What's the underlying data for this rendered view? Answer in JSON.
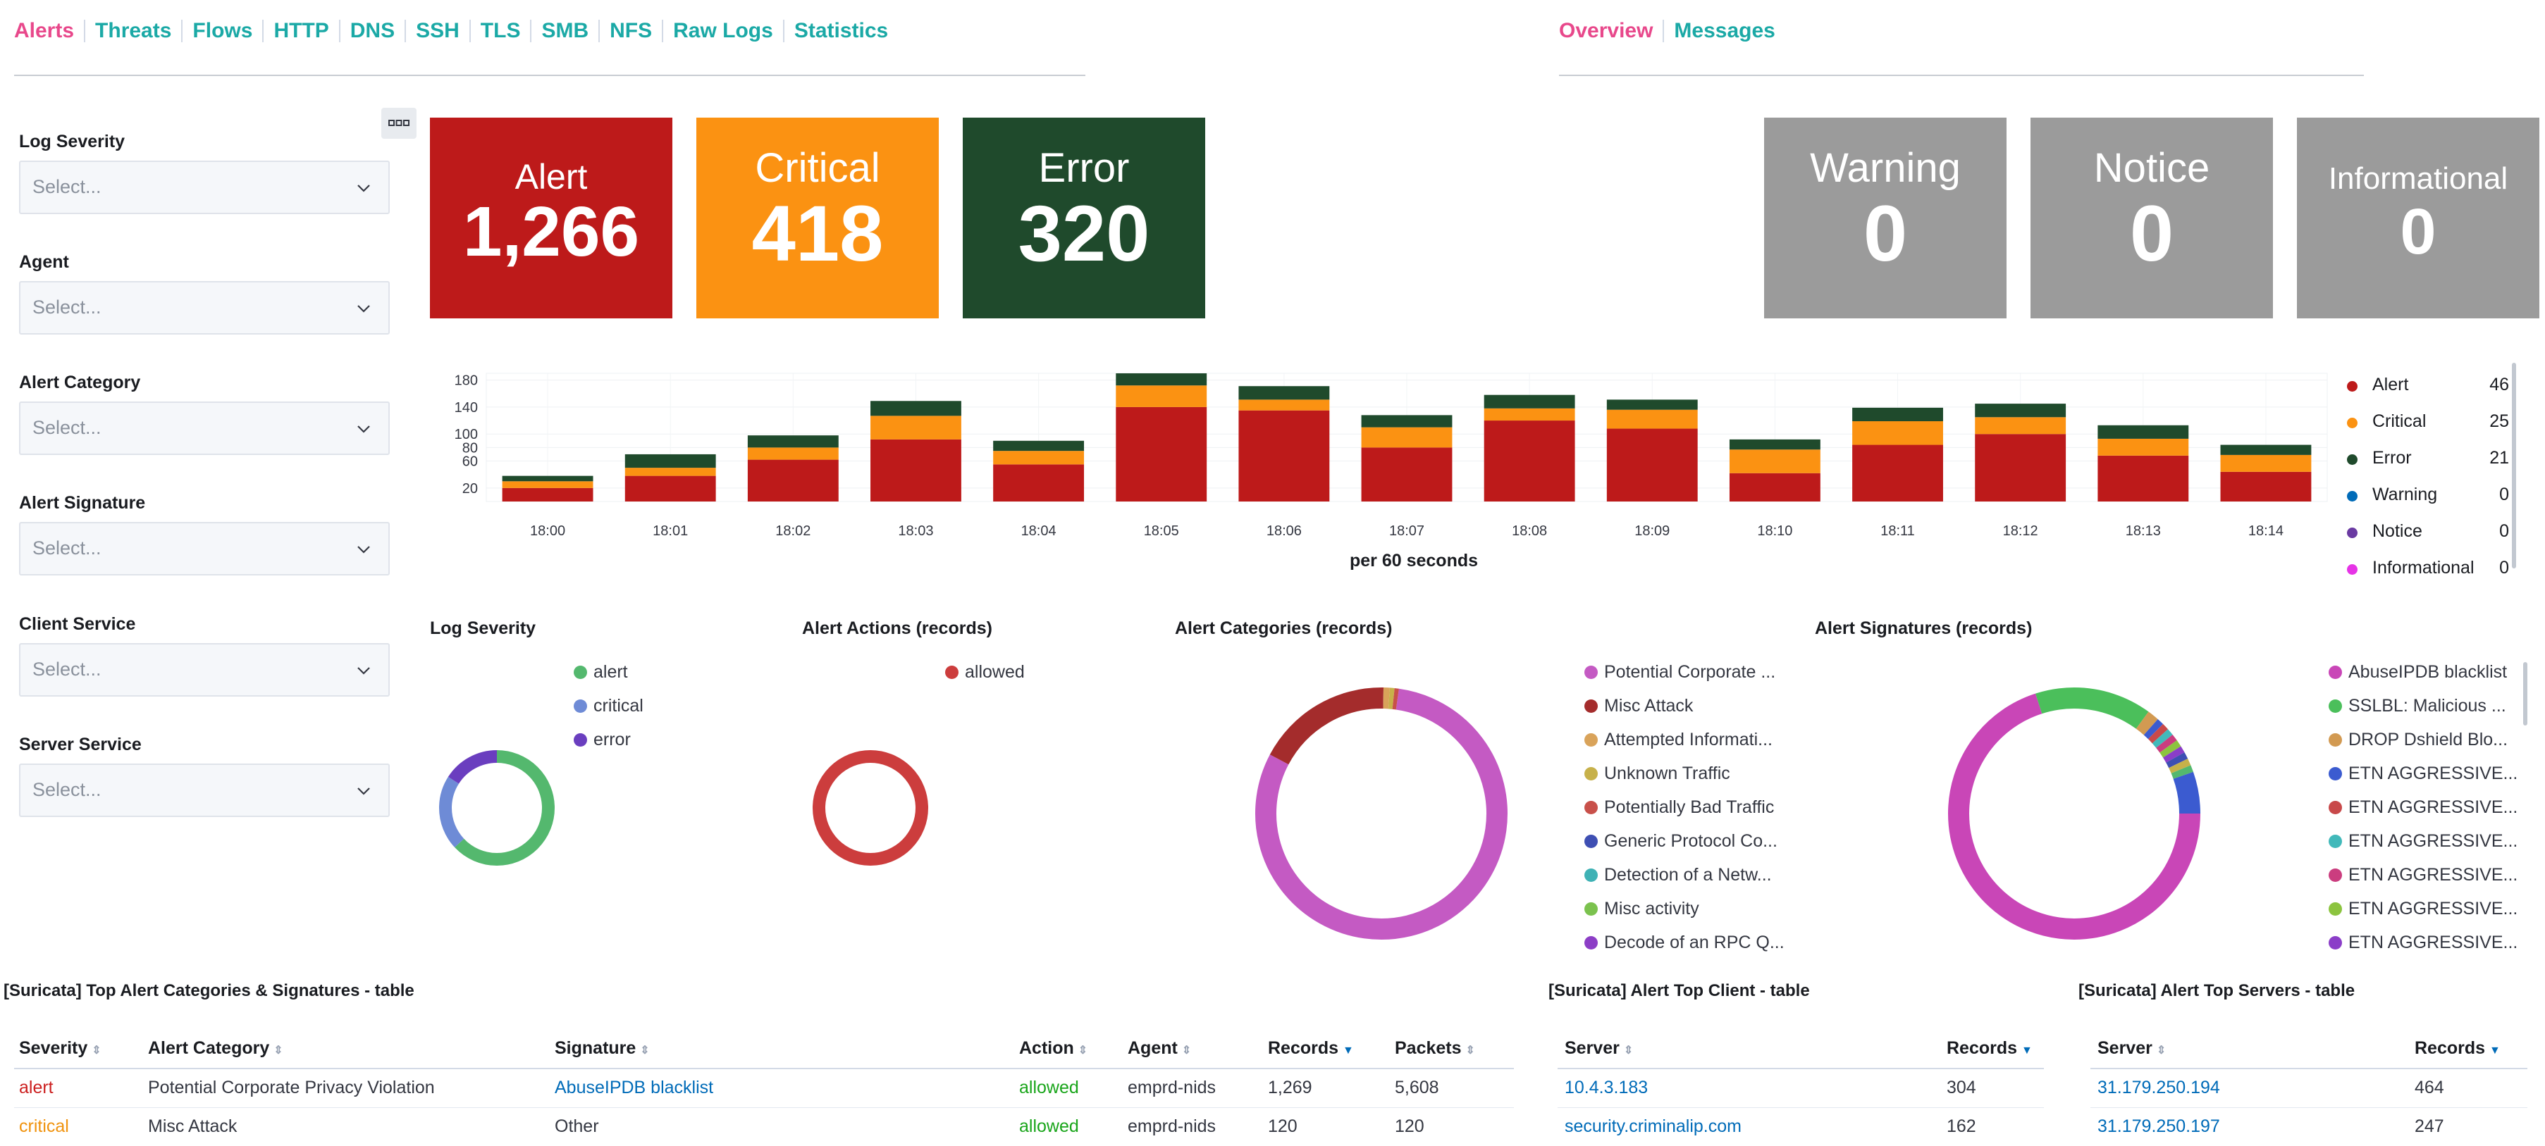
{
  "nav": {
    "left": [
      "Alerts",
      "Threats",
      "Flows",
      "HTTP",
      "DNS",
      "SSH",
      "TLS",
      "SMB",
      "NFS",
      "Raw Logs",
      "Statistics"
    ],
    "right": [
      "Overview",
      "Messages"
    ]
  },
  "filters": [
    {
      "label": "Log Severity",
      "placeholder": "Select..."
    },
    {
      "label": "Agent",
      "placeholder": "Select..."
    },
    {
      "label": "Alert Category",
      "placeholder": "Select..."
    },
    {
      "label": "Alert Signature",
      "placeholder": "Select..."
    },
    {
      "label": "Client Service",
      "placeholder": "Select..."
    },
    {
      "label": "Server Service",
      "placeholder": "Select..."
    }
  ],
  "metrics": [
    {
      "label": "Alert",
      "value": "1,266",
      "color": "#bd1a1a"
    },
    {
      "label": "Critical",
      "value": "418",
      "color": "#fb9212"
    },
    {
      "label": "Error",
      "value": "320",
      "color": "#1f4a2c"
    },
    {
      "label": "Warning",
      "value": "0",
      "color": "#9b9b9b"
    },
    {
      "label": "Notice",
      "value": "0",
      "color": "#9b9b9b"
    },
    {
      "label": "Informational",
      "value": "0",
      "color": "#9b9b9b"
    }
  ],
  "chart_data": {
    "type": "bar",
    "stacked": true,
    "categories": [
      "18:00",
      "18:01",
      "18:02",
      "18:03",
      "18:04",
      "18:05",
      "18:06",
      "18:07",
      "18:08",
      "18:09",
      "18:10",
      "18:11",
      "18:12",
      "18:13",
      "18:14"
    ],
    "series": [
      {
        "name": "Alert",
        "color": "#bd1a1a",
        "values": [
          20,
          38,
          62,
          92,
          55,
          140,
          135,
          80,
          120,
          108,
          42,
          84,
          100,
          68,
          44
        ]
      },
      {
        "name": "Critical",
        "color": "#fb9212",
        "values": [
          10,
          12,
          18,
          35,
          20,
          32,
          16,
          30,
          18,
          28,
          35,
          35,
          25,
          25,
          25
        ]
      },
      {
        "name": "Error",
        "color": "#1f4a2c",
        "values": [
          8,
          20,
          18,
          22,
          15,
          18,
          20,
          18,
          20,
          15,
          15,
          20,
          20,
          20,
          15
        ]
      }
    ],
    "ylim": [
      0,
      190
    ],
    "yticks": [
      20,
      60,
      80,
      100,
      140,
      180
    ],
    "xlabel": "per 60 seconds",
    "legend": [
      {
        "name": "Alert",
        "color": "#bd1a1a",
        "value": "46"
      },
      {
        "name": "Critical",
        "color": "#fb9212",
        "value": "25"
      },
      {
        "name": "Error",
        "color": "#1f4a2c",
        "value": "21"
      },
      {
        "name": "Warning",
        "color": "#006bb8",
        "value": "0"
      },
      {
        "name": "Notice",
        "color": "#6a3aa2",
        "value": "0"
      },
      {
        "name": "Informational",
        "color": "#e633e6",
        "value": "0"
      }
    ]
  },
  "panels": {
    "log_severity": {
      "title": "Log Severity",
      "legend": [
        {
          "name": "alert",
          "color": "#54b86e"
        },
        {
          "name": "critical",
          "color": "#6e8bd6"
        },
        {
          "name": "error",
          "color": "#6a3ebf"
        }
      ],
      "values": [
        0.63,
        0.21,
        0.16
      ]
    },
    "alert_actions": {
      "title": "Alert Actions (records)",
      "legend": [
        {
          "name": "allowed",
          "color": "#cc3d3d"
        }
      ],
      "values": [
        1.0
      ]
    },
    "alert_categories": {
      "title": "Alert Categories (records)",
      "legend": [
        {
          "name": "Potential Corporate ...",
          "color": "#c45ac3"
        },
        {
          "name": "Misc Attack",
          "color": "#a42c2c"
        },
        {
          "name": "Attempted Informati...",
          "color": "#d9a35a"
        },
        {
          "name": "Unknown Traffic",
          "color": "#c7b14a"
        },
        {
          "name": "Potentially Bad Traffic",
          "color": "#c8504a"
        },
        {
          "name": "Generic Protocol Co...",
          "color": "#3e4fb3"
        },
        {
          "name": "Detection of a Netw...",
          "color": "#3fb2b5"
        },
        {
          "name": "Misc activity",
          "color": "#7bc24e"
        },
        {
          "name": "Decode of an RPC Q...",
          "color": "#8c3ec6"
        }
      ],
      "values": [
        0.805,
        0.175,
        0.008,
        0.006,
        0.006
      ]
    },
    "alert_signatures": {
      "title": "Alert Signatures (records)",
      "legend": [
        {
          "name": "AbuseIPDB blacklist",
          "color": "#c946b7"
        },
        {
          "name": "SSLBL: Malicious ...",
          "color": "#4bbf5b"
        },
        {
          "name": "DROP Dshield Blo...",
          "color": "#d29a52"
        },
        {
          "name": "ETN AGGRESSIVE...",
          "color": "#3b5bd0"
        },
        {
          "name": "ETN AGGRESSIVE...",
          "color": "#c8494a"
        },
        {
          "name": "ETN AGGRESSIVE...",
          "color": "#41b9ba"
        },
        {
          "name": "ETN AGGRESSIVE...",
          "color": "#cb3d7f"
        },
        {
          "name": "ETN AGGRESSIVE...",
          "color": "#8cc43f"
        },
        {
          "name": "ETN AGGRESSIVE...",
          "color": "#8b3ec8"
        }
      ],
      "values": [
        0.7,
        0.15,
        0.015,
        0.009,
        0.009,
        0.009,
        0.009,
        0.009,
        0.009,
        0.009,
        0.009,
        0.009,
        0.0,
        0.06
      ]
    }
  },
  "table_main": {
    "title": "[Suricata] Top Alert Categories & Signatures - table",
    "headers": [
      "Severity",
      "Alert Category",
      "Signature",
      "Action",
      "Agent",
      "Records",
      "Packets"
    ],
    "rows": [
      {
        "severity": "alert",
        "category": "Potential Corporate Privacy Violation",
        "signature": "AbuseIPDB blacklist",
        "action": "allowed",
        "agent": "emprd-nids",
        "records": "1,269",
        "packets": "5,608"
      },
      {
        "severity": "critical",
        "category": "Misc Attack",
        "signature": "Other",
        "action": "allowed",
        "agent": "emprd-nids",
        "records": "120",
        "packets": "120"
      }
    ]
  },
  "table_client": {
    "title": "[Suricata] Alert Top Client - table",
    "headers": [
      "Server",
      "Records"
    ],
    "rows": [
      {
        "server": "10.4.3.183",
        "records": "304"
      },
      {
        "server": "security.criminalip.com",
        "records": "162"
      }
    ]
  },
  "table_server": {
    "title": "[Suricata] Alert Top Servers - table",
    "headers": [
      "Server",
      "Records"
    ],
    "rows": [
      {
        "server": "31.179.250.194",
        "records": "464"
      },
      {
        "server": "31.179.250.197",
        "records": "247"
      }
    ]
  }
}
